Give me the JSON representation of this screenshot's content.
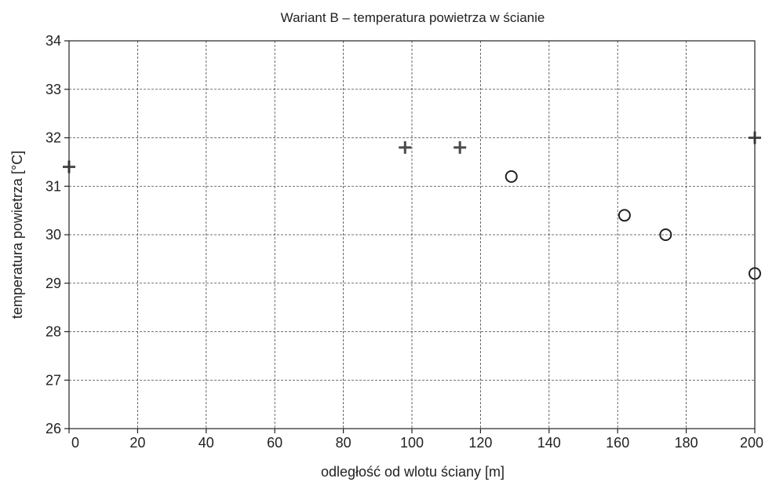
{
  "chart_data": {
    "type": "scatter",
    "title": "Wariant B – temperatura powietrza w ścianie",
    "xlabel": "odległość od wlotu ściany [m]",
    "ylabel": "temperatura powietrza [°C]",
    "xlim": [
      0,
      200
    ],
    "ylim": [
      26,
      34
    ],
    "xticks": [
      0,
      20,
      40,
      60,
      80,
      100,
      120,
      140,
      160,
      180,
      200
    ],
    "yticks": [
      26,
      27,
      28,
      29,
      30,
      31,
      32,
      33,
      34
    ],
    "grid": true,
    "series": [
      {
        "marker": "plus",
        "color": "#4a4a4a",
        "points": [
          {
            "x": 0,
            "y": 31.4
          },
          {
            "x": 98,
            "y": 31.8
          },
          {
            "x": 114,
            "y": 31.8
          },
          {
            "x": 200,
            "y": 32.0
          }
        ]
      },
      {
        "marker": "circle",
        "color": "#222222",
        "points": [
          {
            "x": 129,
            "y": 31.2
          },
          {
            "x": 162,
            "y": 30.4
          },
          {
            "x": 174,
            "y": 30.0
          },
          {
            "x": 200,
            "y": 29.2
          }
        ]
      }
    ]
  }
}
